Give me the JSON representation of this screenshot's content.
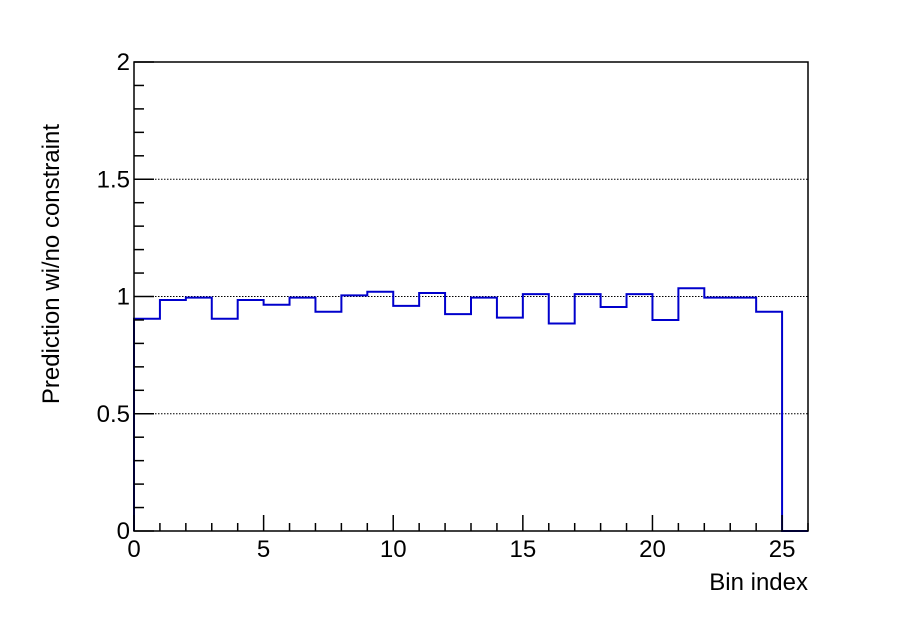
{
  "chart_data": {
    "type": "step",
    "title": "",
    "xlabel": "Bin index",
    "ylabel": "Prediction wi/no constraint",
    "xlim": [
      0,
      26
    ],
    "ylim": [
      0,
      2
    ],
    "x_ticks": [
      "0",
      "5",
      "10",
      "15",
      "20",
      "25"
    ],
    "y_ticks": [
      "0",
      "0.5",
      "1",
      "1.5",
      "2"
    ],
    "grid": "horizontal-dotted",
    "bin_width": 1,
    "series": [
      {
        "color": "#0000cc",
        "values": [
          0.905,
          0.985,
          0.995,
          0.905,
          0.985,
          0.965,
          0.995,
          0.935,
          1.005,
          1.02,
          0.96,
          1.015,
          0.925,
          0.995,
          0.91,
          1.01,
          0.885,
          1.01,
          0.955,
          1.01,
          0.9,
          1.035,
          0.995,
          0.995,
          0.935,
          0.0
        ]
      }
    ]
  }
}
